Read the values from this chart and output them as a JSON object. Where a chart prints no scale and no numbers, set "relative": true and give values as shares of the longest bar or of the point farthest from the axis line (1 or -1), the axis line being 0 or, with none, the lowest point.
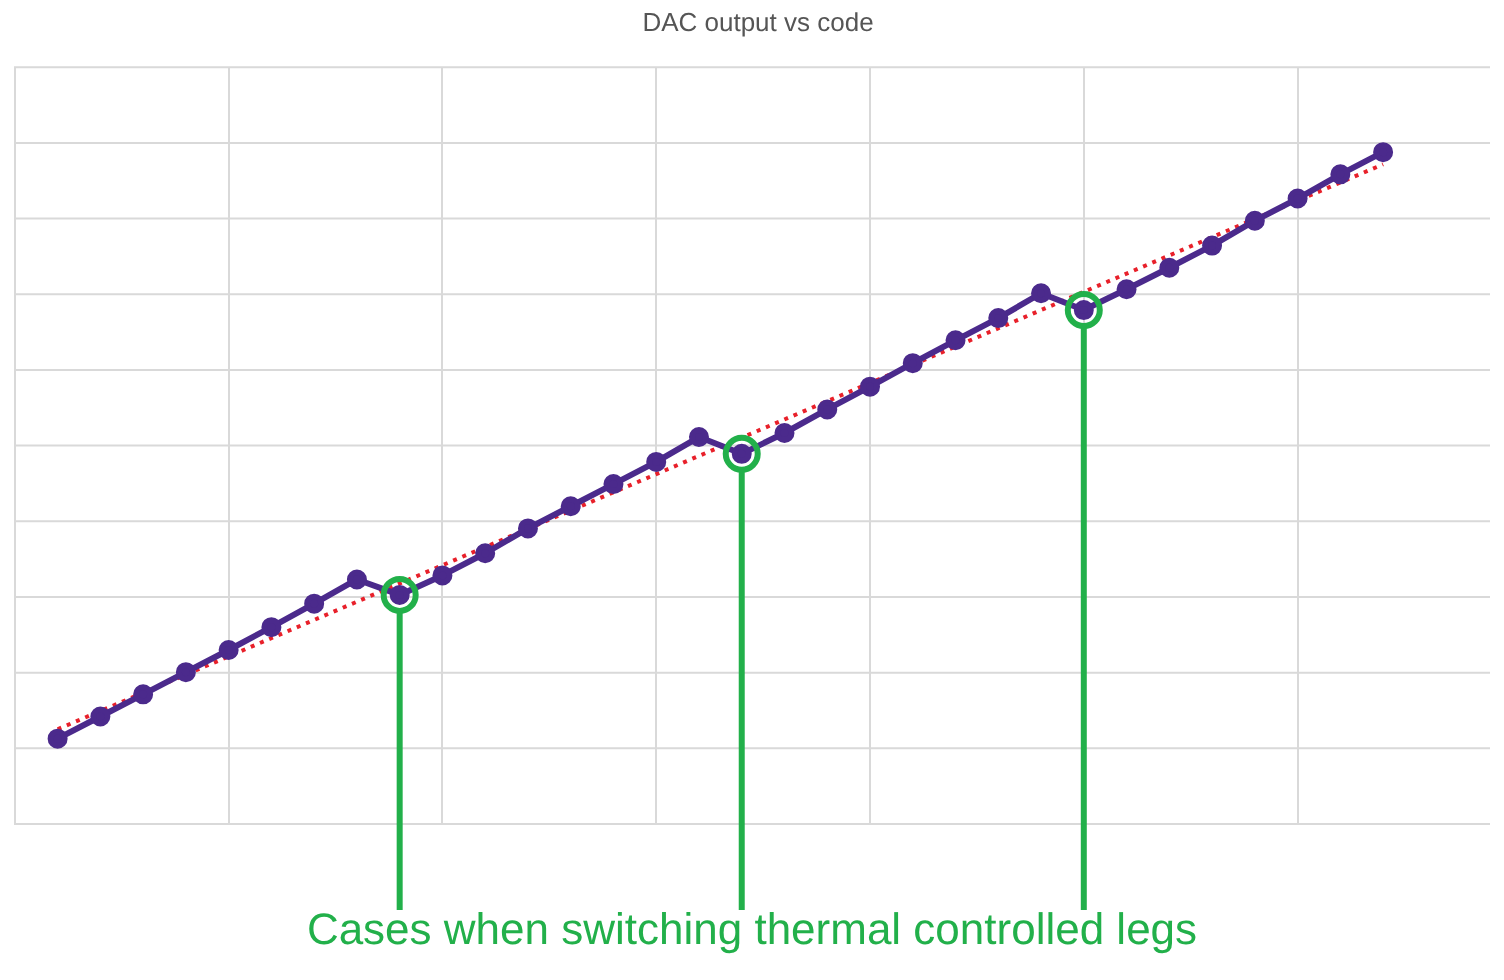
{
  "chart_data": {
    "type": "line",
    "title": "DAC output vs code",
    "relative": true,
    "grid": true,
    "legend": false,
    "categories": [
      null,
      null,
      null,
      null,
      null,
      null,
      null,
      null,
      null,
      null,
      null,
      null,
      null,
      null,
      null,
      null,
      null,
      null,
      null,
      null,
      null,
      null,
      null,
      null,
      null,
      null,
      null,
      null,
      null,
      null,
      null,
      null
    ],
    "series": [
      {
        "color": "#4b2a8c",
        "marker": "circle",
        "line_style": "solid",
        "values": [
          0.127,
          0.16,
          0.193,
          0.226,
          0.259,
          0.293,
          0.328,
          0.364,
          0.341,
          0.37,
          0.403,
          0.44,
          0.473,
          0.506,
          0.539,
          0.576,
          0.551,
          0.582,
          0.617,
          0.651,
          0.686,
          0.72,
          0.753,
          0.79,
          0.765,
          0.796,
          0.828,
          0.861,
          0.898,
          0.931,
          0.967,
          1
        ]
      },
      {
        "color": "#e8202a",
        "marker": "none",
        "line_style": "dotted",
        "values": [
          0.141,
          null,
          null,
          null,
          null,
          null,
          null,
          null,
          null,
          null,
          null,
          null,
          null,
          null,
          null,
          null,
          null,
          null,
          null,
          null,
          null,
          null,
          null,
          null,
          null,
          null,
          null,
          null,
          null,
          null,
          null,
          0.982
        ]
      }
    ],
    "annotations": [
      "Cases when switching thermal controlled legs"
    ]
  }
}
